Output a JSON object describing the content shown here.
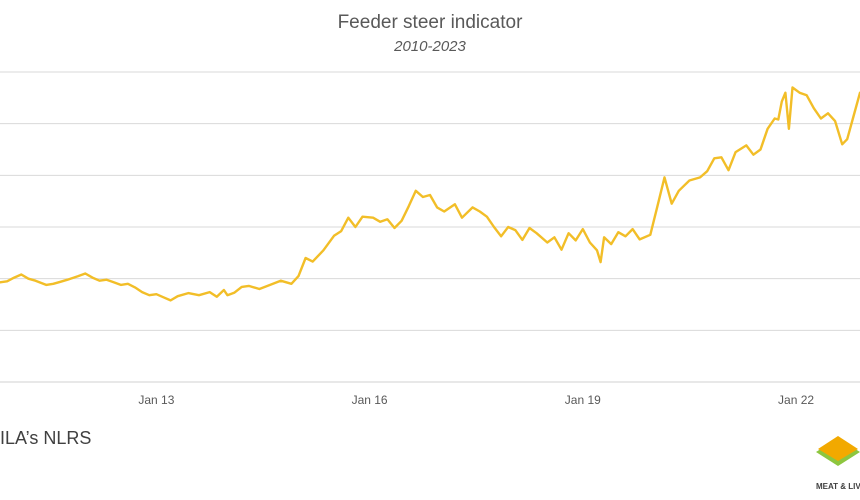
{
  "chart_data": {
    "type": "line",
    "title": "Feeder steer indicator",
    "subtitle": "2010-2023",
    "xlabel": "",
    "ylabel": "",
    "x_ticks": [
      {
        "label": "Jan 13",
        "x": 2013.0
      },
      {
        "label": "Jan 16",
        "x": 2016.0
      },
      {
        "label": "Jan 19",
        "x": 2019.0
      },
      {
        "label": "Jan 22",
        "x": 2022.0
      }
    ],
    "xlim": [
      2010.8,
      2022.9
    ],
    "ylim": [
      0,
      6
    ],
    "y_gridlines": [
      1,
      2,
      3,
      4,
      5,
      6
    ],
    "grid": "horizontal",
    "color": "#F2BE28",
    "series": [
      {
        "values": [
          [
            2010.8,
            1.93
          ],
          [
            2010.9,
            1.95
          ],
          [
            2011.0,
            2.02
          ],
          [
            2011.1,
            2.08
          ],
          [
            2011.2,
            2.0
          ],
          [
            2011.3,
            1.96
          ],
          [
            2011.45,
            1.88
          ],
          [
            2011.55,
            1.9
          ],
          [
            2011.65,
            1.94
          ],
          [
            2011.75,
            1.98
          ],
          [
            2011.9,
            2.05
          ],
          [
            2012.0,
            2.1
          ],
          [
            2012.1,
            2.02
          ],
          [
            2012.2,
            1.96
          ],
          [
            2012.3,
            1.98
          ],
          [
            2012.4,
            1.93
          ],
          [
            2012.5,
            1.88
          ],
          [
            2012.6,
            1.9
          ],
          [
            2012.7,
            1.83
          ],
          [
            2012.8,
            1.74
          ],
          [
            2012.9,
            1.68
          ],
          [
            2013.0,
            1.7
          ],
          [
            2013.1,
            1.64
          ],
          [
            2013.2,
            1.58
          ],
          [
            2013.3,
            1.66
          ],
          [
            2013.45,
            1.72
          ],
          [
            2013.6,
            1.68
          ],
          [
            2013.75,
            1.74
          ],
          [
            2013.85,
            1.65
          ],
          [
            2013.95,
            1.78
          ],
          [
            2014.0,
            1.68
          ],
          [
            2014.1,
            1.73
          ],
          [
            2014.2,
            1.84
          ],
          [
            2014.3,
            1.86
          ],
          [
            2014.45,
            1.8
          ],
          [
            2014.6,
            1.88
          ],
          [
            2014.75,
            1.96
          ],
          [
            2014.9,
            1.9
          ],
          [
            2015.0,
            2.05
          ],
          [
            2015.1,
            2.4
          ],
          [
            2015.2,
            2.33
          ],
          [
            2015.35,
            2.55
          ],
          [
            2015.5,
            2.83
          ],
          [
            2015.6,
            2.92
          ],
          [
            2015.7,
            3.18
          ],
          [
            2015.8,
            3.0
          ],
          [
            2015.9,
            3.2
          ],
          [
            2016.05,
            3.18
          ],
          [
            2016.15,
            3.1
          ],
          [
            2016.25,
            3.15
          ],
          [
            2016.35,
            2.98
          ],
          [
            2016.45,
            3.12
          ],
          [
            2016.55,
            3.4
          ],
          [
            2016.65,
            3.7
          ],
          [
            2016.75,
            3.58
          ],
          [
            2016.85,
            3.62
          ],
          [
            2016.95,
            3.38
          ],
          [
            2017.05,
            3.3
          ],
          [
            2017.2,
            3.44
          ],
          [
            2017.3,
            3.18
          ],
          [
            2017.45,
            3.38
          ],
          [
            2017.55,
            3.3
          ],
          [
            2017.65,
            3.2
          ],
          [
            2017.75,
            3.0
          ],
          [
            2017.85,
            2.82
          ],
          [
            2017.95,
            3.0
          ],
          [
            2018.05,
            2.94
          ],
          [
            2018.15,
            2.75
          ],
          [
            2018.25,
            2.98
          ],
          [
            2018.35,
            2.88
          ],
          [
            2018.5,
            2.7
          ],
          [
            2018.6,
            2.8
          ],
          [
            2018.7,
            2.56
          ],
          [
            2018.8,
            2.88
          ],
          [
            2018.9,
            2.74
          ],
          [
            2019.0,
            2.96
          ],
          [
            2019.1,
            2.7
          ],
          [
            2019.2,
            2.55
          ],
          [
            2019.25,
            2.32
          ],
          [
            2019.3,
            2.8
          ],
          [
            2019.4,
            2.67
          ],
          [
            2019.5,
            2.9
          ],
          [
            2019.6,
            2.82
          ],
          [
            2019.7,
            2.96
          ],
          [
            2019.8,
            2.76
          ],
          [
            2019.95,
            2.85
          ],
          [
            2020.05,
            3.4
          ],
          [
            2020.15,
            3.96
          ],
          [
            2020.25,
            3.45
          ],
          [
            2020.35,
            3.7
          ],
          [
            2020.5,
            3.9
          ],
          [
            2020.65,
            3.96
          ],
          [
            2020.75,
            4.08
          ],
          [
            2020.85,
            4.33
          ],
          [
            2020.95,
            4.35
          ],
          [
            2021.05,
            4.1
          ],
          [
            2021.15,
            4.45
          ],
          [
            2021.3,
            4.58
          ],
          [
            2021.4,
            4.4
          ],
          [
            2021.5,
            4.5
          ],
          [
            2021.6,
            4.9
          ],
          [
            2021.7,
            5.1
          ],
          [
            2021.75,
            5.08
          ],
          [
            2021.8,
            5.43
          ],
          [
            2021.85,
            5.6
          ],
          [
            2021.9,
            4.9
          ],
          [
            2021.95,
            5.7
          ],
          [
            2022.05,
            5.6
          ],
          [
            2022.15,
            5.55
          ],
          [
            2022.25,
            5.3
          ],
          [
            2022.35,
            5.1
          ],
          [
            2022.45,
            5.2
          ],
          [
            2022.55,
            5.05
          ],
          [
            2022.65,
            4.6
          ],
          [
            2022.72,
            4.7
          ],
          [
            2022.8,
            5.1
          ],
          [
            2022.9,
            5.6
          ]
        ]
      }
    ]
  },
  "source": {
    "text": "ILA’s NLRS"
  },
  "logo": {
    "text": "MEAT & LIV",
    "colors": [
      "#F2A900",
      "#8DC63F"
    ]
  }
}
